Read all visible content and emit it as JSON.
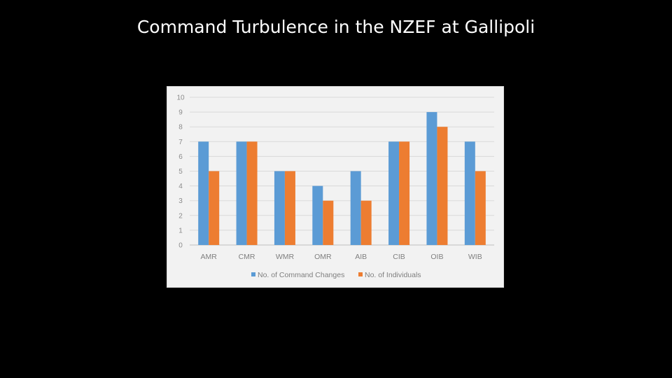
{
  "slide": {
    "title": "Command Turbulence in the NZEF at Gallipoli"
  },
  "chart_data": {
    "type": "bar",
    "title": "",
    "xlabel": "",
    "ylabel": "",
    "categories": [
      "AMR",
      "CMR",
      "WMR",
      "OMR",
      "AIB",
      "CIB",
      "OIB",
      "WIB"
    ],
    "series": [
      {
        "name": "No. of Command Changes",
        "color": "#5b9bd5",
        "values": [
          7,
          7,
          5,
          4,
          5,
          7,
          9,
          7
        ]
      },
      {
        "name": "No. of Individuals",
        "color": "#ed7d31",
        "values": [
          5,
          7,
          5,
          3,
          3,
          7,
          8,
          5
        ]
      }
    ],
    "ylim": [
      0,
      10
    ],
    "yticks": [
      0,
      1,
      2,
      3,
      4,
      5,
      6,
      7,
      8,
      9,
      10
    ],
    "grid": true,
    "legend": "bottom"
  }
}
